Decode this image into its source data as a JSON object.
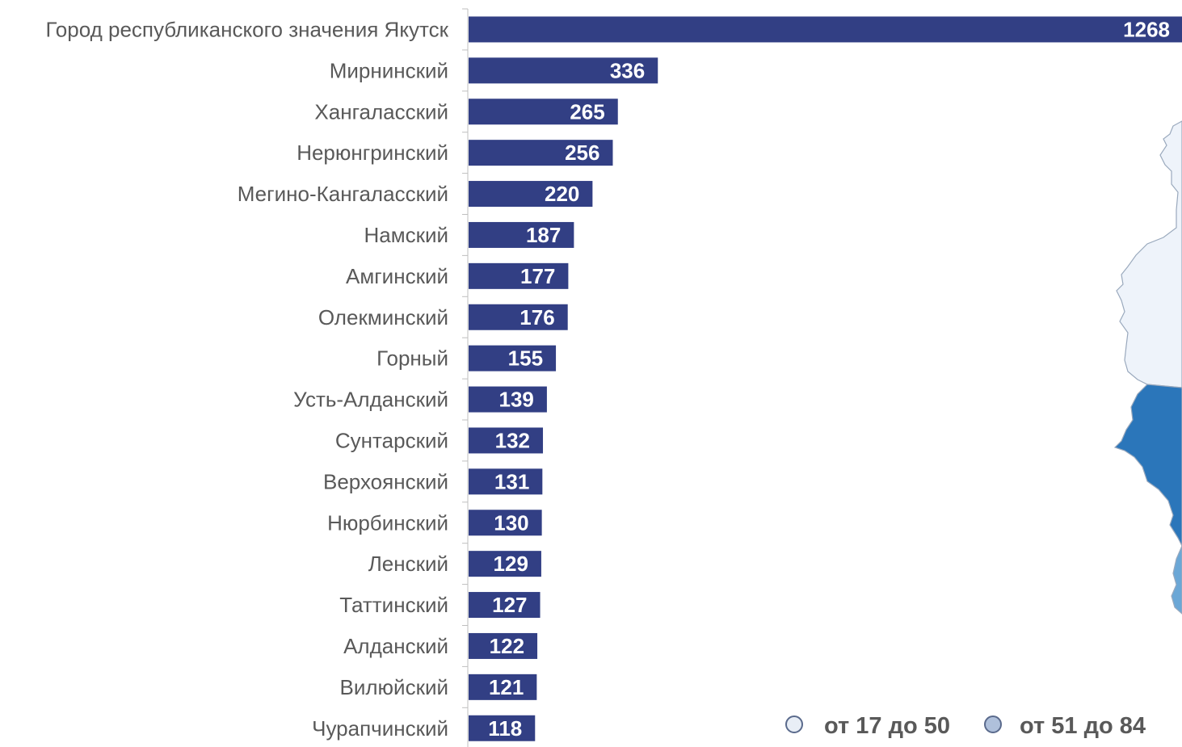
{
  "colors": {
    "bar": "#323F84",
    "axis": "#BFBFBF",
    "label": "#595959",
    "map_light": "#EEF3FA",
    "map_dark": "#2B76BA",
    "map_mid": "#6BA7D6",
    "legend_1_fill": "#E8EEF6",
    "legend_2_fill": "#AFC0DB"
  },
  "chart_data": {
    "type": "bar",
    "orientation": "horizontal",
    "categories": [
      "Город республиканского значения Якутск",
      "Мирнинский",
      "Хангаласский",
      "Нерюнгринский",
      "Мегино-Кангаласский",
      "Намский",
      "Амгинский",
      "Олекминский",
      "Горный",
      "Усть-Алданский",
      "Сунтарский",
      "Верхоянский",
      "Нюрбинский",
      "Ленский",
      "Таттинский",
      "Алданский",
      "Вилюйский",
      "Чурапчинский"
    ],
    "values": [
      1268,
      336,
      265,
      256,
      220,
      187,
      177,
      176,
      155,
      139,
      132,
      131,
      130,
      129,
      127,
      122,
      121,
      118
    ],
    "value_labels": [
      "1268",
      "336",
      "265",
      "256",
      "220",
      "187",
      "177",
      "176",
      "155",
      "139",
      "132",
      "131",
      "130",
      "129",
      "127",
      "122",
      "121",
      "118"
    ],
    "xlim": [
      0,
      1268
    ],
    "grid": false,
    "legend_position": "bottom-right",
    "legend": [
      {
        "label": "от 17 до 50",
        "color": "#E8EEF6"
      },
      {
        "label": "от 51 до 84",
        "color": "#AFC0DB"
      }
    ]
  }
}
